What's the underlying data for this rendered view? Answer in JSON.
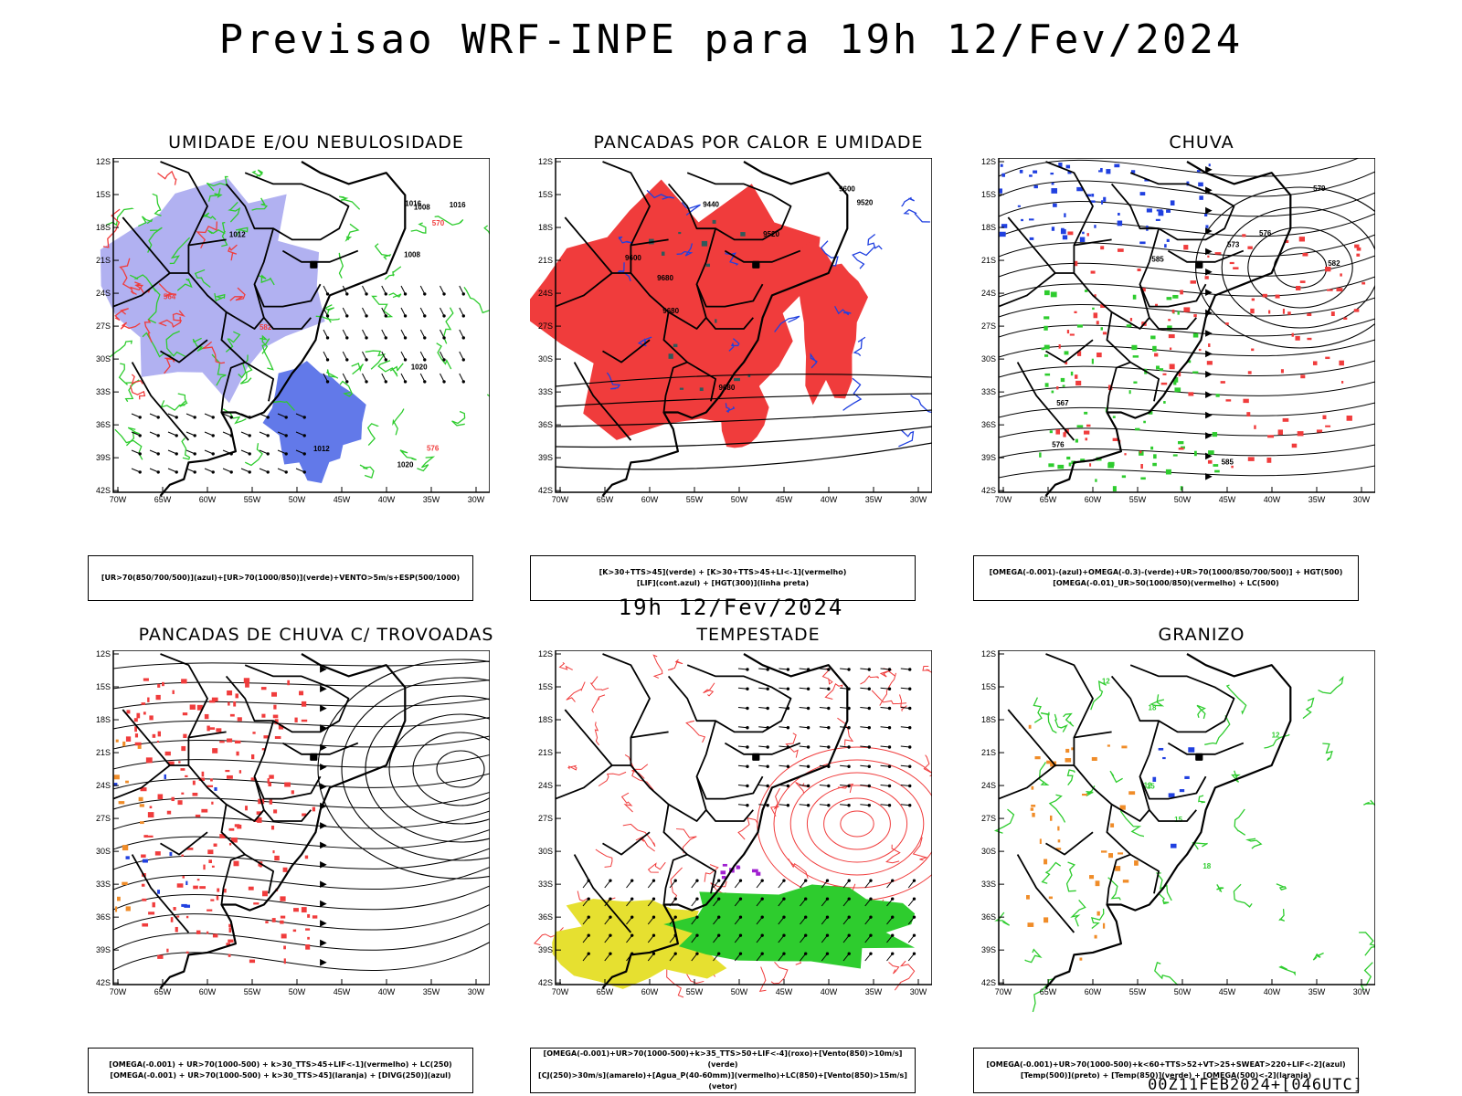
{
  "header": {
    "main_title": "Previsao WRF-INPE  para 19h 12/Fev/2024",
    "sub_title": "19h 12/Fev/2024",
    "footer": "00Z11FEB2024+[046UTC]"
  },
  "axes": {
    "lat_labels": [
      "12S",
      "15S",
      "18S",
      "21S",
      "24S",
      "27S",
      "30S",
      "33S",
      "36S",
      "39S",
      "42S"
    ],
    "lon_labels": [
      "70W",
      "65W",
      "60W",
      "55W",
      "50W",
      "45W",
      "40W",
      "35W",
      "30W"
    ]
  },
  "colors": {
    "red": "#f03c3c",
    "green": "#2ecc2e",
    "blue": "#2040e0",
    "lavender": "#a8a8f0",
    "darkteal": "#2e5a5a",
    "yellow": "#e6e030",
    "orange": "#f08c28",
    "purple": "#a020d0"
  },
  "panels": [
    {
      "title": "UMIDADE E/OU NEBULOSIDADE",
      "legend": [
        "[UR>70(850/700/500)](azul)+[UR>70(1000/850)](verde)+VENTO>5m/s+ESP(500/1000)"
      ],
      "contour_labels": [
        "1008",
        "1012",
        "1016",
        "1020",
        "1008",
        "1012",
        "1016",
        "1020",
        "576",
        "564",
        "570",
        "582"
      ]
    },
    {
      "title": "PANCADAS POR CALOR E UMIDADE",
      "legend": [
        "[K>30+TTS>45](verde)  +  [K>30+TTS>45+LI<-1](vermelho)",
        "[LIF](cont.azul)  +  [HGT(300)](linha preta)"
      ],
      "contour_labels": [
        "9680",
        "9680",
        "9680",
        "9600",
        "9520",
        "9440",
        "9520",
        "9600"
      ]
    },
    {
      "title": "CHUVA",
      "legend": [
        "[OMEGA(-0.001)-(azul)+OMEGA(-0.3)-(verde)+UR>70(1000/850/700/500)]  +  HGT(500)",
        "[OMEGA(-0.01)_UR>50(1000/850)(vermelho)  +  LC(500)"
      ],
      "contour_labels": [
        "585",
        "585",
        "582",
        "579",
        "576",
        "573",
        "576",
        "567"
      ]
    },
    {
      "title": "PANCADAS DE CHUVA C/ TROVOADAS",
      "legend": [
        "[OMEGA(-0.001)  +  UR>70(1000-500)  +  k>30_TTS>45+LIF<-1](vermelho)  +  LC(250)",
        "[OMEGA(-0.001)  +  UR>70(1000-500)  +  k>30_TTS>45](laranja)  +  [DIVG(250)](azul)"
      ],
      "contour_labels": []
    },
    {
      "title": "TEMPESTADE",
      "legend": [
        "[OMEGA(-0.001)+UR>70(1000-500)+k>35_TTS>50+LIF<-4](roxo)+[Vento(850)>10m/s](verde)",
        "[CJ(250)>30m/s](amarelo)+[Agua_P(40-60mm)](vermelho)+LC(850)+[Vento(850)>15m/s](vetor)"
      ],
      "contour_labels": []
    },
    {
      "title": "GRANIZO",
      "legend": [
        "[OMEGA(-0.001)+UR>70(1000-500)+k<60+TTS>52+VT>25+SWEAT>220+LIF<-2](azul)",
        "[Temp(500)](preto)  +  [Temp(850)](verde)  +  [OMEGA(500)<-2](laranja)"
      ],
      "contour_labels": [
        "12",
        "15",
        "18",
        "12",
        "15",
        "18",
        "12"
      ]
    }
  ]
}
